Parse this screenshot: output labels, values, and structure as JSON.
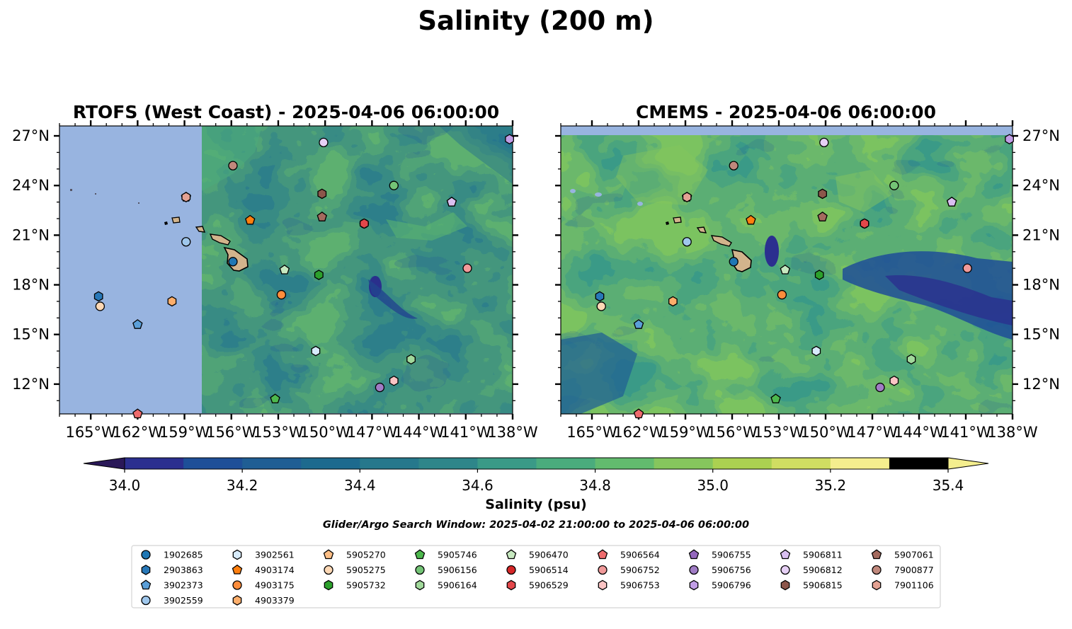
{
  "figure": {
    "suptitle": "Salinity (200 m)",
    "search_window": "Glider/Argo Search Window: 2025-04-02 21:00:00 to 2025-04-06 06:00:00"
  },
  "colors": {
    "land": "#d2b48c",
    "nodata": "#98b4e0",
    "colormap": [
      "#2a1858",
      "#2b2f8f",
      "#1e4f98",
      "#1f5e94",
      "#1d6a8e",
      "#26788c",
      "#2e868a",
      "#3a9a87",
      "#4aac7d",
      "#62bb6e",
      "#86c65d",
      "#abd151",
      "#d0dd62",
      "#f4ee8e"
    ]
  },
  "colorbar": {
    "label": "Salinity (psu)",
    "min": 34.0,
    "max": 35.4,
    "step": 0.1,
    "ticks": [
      "34.0",
      "34.2",
      "34.4",
      "34.6",
      "34.8",
      "35.0",
      "35.2",
      "35.4"
    ],
    "extend": "both"
  },
  "chart_data": [
    {
      "type": "heatmap",
      "title": "RTOFS (West Coast) - 2025-04-06 06:00:00",
      "xlim": [
        -167,
        -138
      ],
      "ylim": [
        10.2,
        27.6
      ],
      "x_ticks": [
        "165°W",
        "162°W",
        "159°W",
        "156°W",
        "153°W",
        "150°W",
        "147°W",
        "144°W",
        "141°W",
        "138°W"
      ],
      "x_tick_values": [
        -165,
        -162,
        -159,
        -156,
        -153,
        -150,
        -147,
        -144,
        -141,
        -138
      ],
      "y_ticks": [
        "12°N",
        "15°N",
        "18°N",
        "21°N",
        "24°N",
        "27°N"
      ],
      "y_tick_values": [
        12,
        15,
        18,
        21,
        24,
        27
      ],
      "y_axis_side": "left",
      "nodata_west_of": -157.9,
      "nodata_north_of": null,
      "variable": "salinity (psu)",
      "value_range_estimate": [
        34.2,
        35.1
      ]
    },
    {
      "type": "heatmap",
      "title": "CMEMS - 2025-04-06 06:00:00",
      "xlim": [
        -167,
        -138
      ],
      "ylim": [
        10.2,
        27.6
      ],
      "x_ticks": [
        "165°W",
        "162°W",
        "159°W",
        "156°W",
        "153°W",
        "150°W",
        "147°W",
        "144°W",
        "141°W",
        "138°W"
      ],
      "x_tick_values": [
        -165,
        -162,
        -159,
        -156,
        -153,
        -150,
        -147,
        -144,
        -141,
        -138
      ],
      "y_ticks": [
        "12°N",
        "15°N",
        "18°N",
        "21°N",
        "24°N",
        "27°N"
      ],
      "y_tick_values": [
        12,
        15,
        18,
        21,
        24,
        27
      ],
      "y_axis_side": "right",
      "nodata_west_of": null,
      "nodata_north_of": 27.0,
      "variable": "salinity (psu)",
      "value_range_estimate": [
        34.1,
        35.3
      ]
    }
  ],
  "floats": [
    {
      "id": "1902685",
      "marker": "circle",
      "color": "#1f77b4",
      "lon": -155.9,
      "lat": 19.4
    },
    {
      "id": "2903863",
      "marker": "hexagon",
      "color": "#2878b8",
      "lon": -164.5,
      "lat": 17.3
    },
    {
      "id": "3902373",
      "marker": "pentagon",
      "color": "#5b9fd8",
      "lon": -162.0,
      "lat": 15.6
    },
    {
      "id": "3902559",
      "marker": "circle",
      "color": "#9fc7ec",
      "lon": -158.9,
      "lat": 20.6
    },
    {
      "id": "3902561",
      "marker": "hexagon",
      "color": "#d7ebfb",
      "lon": -150.6,
      "lat": 14.0
    },
    {
      "id": "4903174",
      "marker": "pentagon",
      "color": "#ff7f0e",
      "lon": -154.8,
      "lat": 21.9
    },
    {
      "id": "4903175",
      "marker": "circle",
      "color": "#fd8d3c",
      "lon": -152.8,
      "lat": 17.4
    },
    {
      "id": "4903379",
      "marker": "hexagon",
      "color": "#fdae6b",
      "lon": -159.8,
      "lat": 17.0
    },
    {
      "id": "5905270",
      "marker": "pentagon",
      "color": "#fdbf86",
      "lon": -158.9,
      "lat": 23.3
    },
    {
      "id": "5905275",
      "marker": "circle",
      "color": "#fdd8b5",
      "lon": -164.4,
      "lat": 16.7
    },
    {
      "id": "5905732",
      "marker": "hexagon",
      "color": "#2ca02c",
      "lon": -150.4,
      "lat": 18.6
    },
    {
      "id": "5905746",
      "marker": "pentagon",
      "color": "#4db84d",
      "lon": -153.2,
      "lat": 11.1
    },
    {
      "id": "5906156",
      "marker": "circle",
      "color": "#74c476",
      "lon": -145.6,
      "lat": 24.0
    },
    {
      "id": "5906164",
      "marker": "hexagon",
      "color": "#a1d99b",
      "lon": -144.5,
      "lat": 13.5
    },
    {
      "id": "5906470",
      "marker": "pentagon",
      "color": "#c7e9c0",
      "lon": -152.6,
      "lat": 18.9
    },
    {
      "id": "5906514",
      "marker": "circle",
      "color": "#d62728",
      "lon": -147.5,
      "lat": 21.7
    },
    {
      "id": "5906529",
      "marker": "hexagon",
      "color": "#e3474a",
      "lon": -147.5,
      "lat": 21.7
    },
    {
      "id": "5906564",
      "marker": "pentagon",
      "color": "#ee6b6d",
      "lon": -162.0,
      "lat": 10.2
    },
    {
      "id": "5906752",
      "marker": "circle",
      "color": "#f19a9a",
      "lon": -140.9,
      "lat": 19.0
    },
    {
      "id": "5906753",
      "marker": "hexagon",
      "color": "#fbc4c4",
      "lon": -145.6,
      "lat": 12.2
    },
    {
      "id": "5906755",
      "marker": "pentagon",
      "color": "#9467bd",
      "lon": -141.9,
      "lat": 23.0
    },
    {
      "id": "5906756",
      "marker": "circle",
      "color": "#a07cc5",
      "lon": -146.5,
      "lat": 11.8
    },
    {
      "id": "5906796",
      "marker": "hexagon",
      "color": "#c29ee6",
      "lon": -138.2,
      "lat": 26.8
    },
    {
      "id": "5906811",
      "marker": "pentagon",
      "color": "#d9bff0",
      "lon": -141.9,
      "lat": 23.0
    },
    {
      "id": "5906812",
      "marker": "circle",
      "color": "#e6d0f5",
      "lon": -150.1,
      "lat": 26.6
    },
    {
      "id": "5906815",
      "marker": "hexagon",
      "color": "#8c564b",
      "lon": -150.2,
      "lat": 23.5
    },
    {
      "id": "5907061",
      "marker": "pentagon",
      "color": "#a46a5e",
      "lon": -150.2,
      "lat": 22.1
    },
    {
      "id": "7900877",
      "marker": "circle",
      "color": "#c0887c",
      "lon": -155.9,
      "lat": 25.2
    },
    {
      "id": "7901106",
      "marker": "hexagon",
      "color": "#e4a293",
      "lon": -158.9,
      "lat": 23.3
    }
  ],
  "legend": {
    "columns": [
      [
        "1902685",
        "2903863",
        "3902373",
        "3902559"
      ],
      [
        "3902561",
        "4903174",
        "4903175",
        "4903379"
      ],
      [
        "5905270",
        "5905275",
        "5905732"
      ],
      [
        "5905746",
        "5906156",
        "5906164"
      ],
      [
        "5906470",
        "5906514",
        "5906529"
      ],
      [
        "5906564",
        "5906752",
        "5906753"
      ],
      [
        "5906755",
        "5906756",
        "5906796"
      ],
      [
        "5906811",
        "5906812",
        "5906815"
      ],
      [
        "5907061",
        "7900877",
        "7901106"
      ]
    ]
  }
}
